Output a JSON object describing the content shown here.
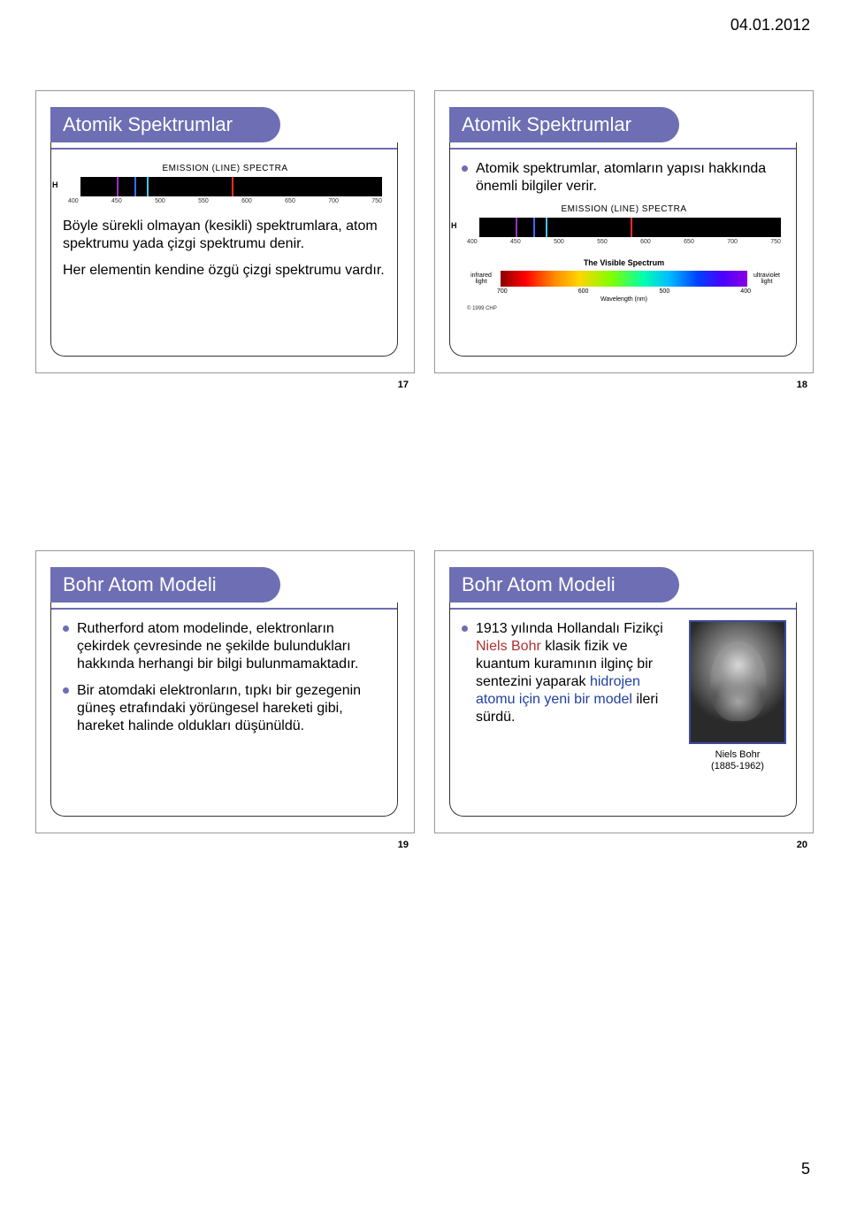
{
  "header": {
    "date": "04.01.2012",
    "page_number": "5"
  },
  "slides": {
    "s17": {
      "title": "Atomik Spektrumlar",
      "number": "17",
      "spectra": {
        "title": "EMISSION (LINE) SPECTRA",
        "element_label": "H",
        "lines": [
          {
            "pos_pct": 12,
            "color": "#9b2fbf"
          },
          {
            "pos_pct": 18,
            "color": "#3a6bff"
          },
          {
            "pos_pct": 22,
            "color": "#49c2ff"
          },
          {
            "pos_pct": 50,
            "color": "#ff2a2a"
          }
        ],
        "ticks": [
          "400",
          "450",
          "500",
          "550",
          "600",
          "650",
          "700",
          "750"
        ]
      },
      "text1": "Böyle sürekli olmayan (kesikli) spektrumlara, atom spektrumu yada çizgi spektrumu denir.",
      "text2": "Her elementin kendine özgü çizgi spektrumu vardır."
    },
    "s18": {
      "title": "Atomik Spektrumlar",
      "number": "18",
      "bullet": "Atomik spektrumlar, atomların yapısı hakkında önemli bilgiler verir.",
      "spectra": {
        "title": "EMISSION (LINE) SPECTRA",
        "element_label": "H",
        "lines": [
          {
            "pos_pct": 12,
            "color": "#9b2fbf"
          },
          {
            "pos_pct": 18,
            "color": "#3a6bff"
          },
          {
            "pos_pct": 22,
            "color": "#49c2ff"
          },
          {
            "pos_pct": 50,
            "color": "#ff2a2a"
          }
        ],
        "ticks": [
          "400",
          "450",
          "500",
          "550",
          "600",
          "650",
          "700",
          "750"
        ]
      },
      "visible": {
        "title": "The Visible Spectrum",
        "left_label": "infrared light",
        "right_label": "ultraviolet light",
        "ticks": [
          "700",
          "600",
          "500",
          "400"
        ],
        "axis_label": "Wavelength (nm)",
        "copyright": "© 1999 CHP"
      }
    },
    "s19": {
      "title": "Bohr Atom Modeli",
      "number": "19",
      "bullets": [
        "Rutherford atom modelinde, elektronların çekirdek çevresinde ne şekilde bulundukları hakkında herhangi bir bilgi bulunmamaktadır.",
        "Bir atomdaki elektronların, tıpkı bir gezegenin güneş etrafındaki yörüngesel hareketi gibi, hareket halinde oldukları düşünüldü."
      ]
    },
    "s20": {
      "title": "Bohr Atom Modeli",
      "number": "20",
      "text_pre": "1913 yılında Hollandalı Fizikçi ",
      "hl_name": "Niels Bohr",
      "text_mid": " klasik fizik ve kuantum kuramının ilginç bir sentezini yaparak ",
      "hl_model": "hidrojen atomu için yeni bir model",
      "text_post": " ileri sürdü.",
      "caption_name": "Niels Bohr",
      "caption_years": "(1885-1962)"
    }
  }
}
